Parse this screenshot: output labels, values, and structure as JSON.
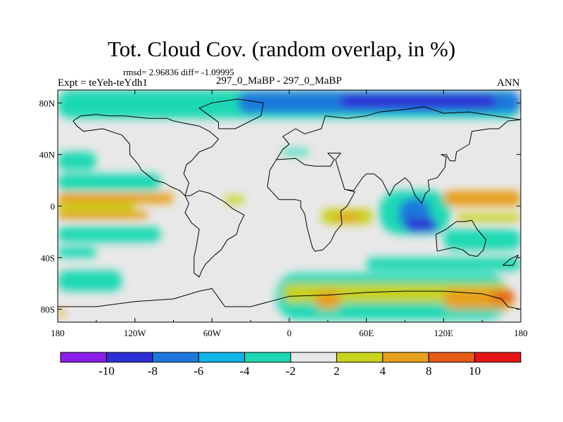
{
  "header": {
    "title": "Tot. Cloud Cov. (random overlap, in %)",
    "stats": "rmsd= 2.96836 diff= -1.09995",
    "expt": "Expt = teYeh-teYdh1",
    "case": "297_0_MaBP - 297_0_MaBP",
    "season": "ANN"
  },
  "chart_data": {
    "type": "heatmap",
    "title": "Tot. Cloud Cov. (random overlap, in %)",
    "xlim": [
      -180,
      180
    ],
    "ylim": [
      -90,
      90
    ],
    "x_ticks": [
      {
        "value": -180,
        "label": "180"
      },
      {
        "value": -120,
        "label": "120W"
      },
      {
        "value": -60,
        "label": "60W"
      },
      {
        "value": 0,
        "label": "0"
      },
      {
        "value": 60,
        "label": "60E"
      },
      {
        "value": 120,
        "label": "120E"
      },
      {
        "value": 180,
        "label": "180"
      }
    ],
    "y_ticks": [
      {
        "value": 80,
        "label": "80N"
      },
      {
        "value": 40,
        "label": "40N"
      },
      {
        "value": 0,
        "label": "0"
      },
      {
        "value": -40,
        "label": "40S"
      },
      {
        "value": -80,
        "label": "80S"
      }
    ],
    "colorbar": {
      "boundaries": [
        -10,
        -8,
        -6,
        -4,
        -2,
        2,
        4,
        8,
        10
      ],
      "labels": [
        "-10",
        "-8",
        "-6",
        "-4",
        "-2",
        "2",
        "4",
        "8",
        "10"
      ],
      "colors": [
        "#8a1ee6",
        "#2e2ed6",
        "#1e78dc",
        "#10b4e6",
        "#1ed9b4",
        "#e8e8e8",
        "#c8d21e",
        "#e6a01e",
        "#e65a14",
        "#e61414"
      ]
    },
    "regions": [
      {
        "lon": [
          -180,
          180
        ],
        "lat": [
          68,
          90
        ],
        "value": -3
      },
      {
        "lon": [
          -40,
          180
        ],
        "lat": [
          72,
          89
        ],
        "value": -7
      },
      {
        "lon": [
          40,
          160
        ],
        "lat": [
          76,
          87
        ],
        "value": -9
      },
      {
        "lon": [
          -180,
          -150
        ],
        "lat": [
          28,
          42
        ],
        "value": -3
      },
      {
        "lon": [
          -180,
          -100
        ],
        "lat": [
          12,
          25
        ],
        "value": -3
      },
      {
        "lon": [
          -180,
          -90
        ],
        "lat": [
          2,
          10
        ],
        "value": 5
      },
      {
        "lon": [
          -180,
          -120
        ],
        "lat": [
          -4,
          2
        ],
        "value": 3
      },
      {
        "lon": [
          -180,
          -110
        ],
        "lat": [
          -10,
          -4
        ],
        "value": 5
      },
      {
        "lon": [
          -180,
          -100
        ],
        "lat": [
          -28,
          -16
        ],
        "value": -3
      },
      {
        "lon": [
          -180,
          -150
        ],
        "lat": [
          -40,
          -32
        ],
        "value": -3
      },
      {
        "lon": [
          -180,
          -130
        ],
        "lat": [
          -66,
          -50
        ],
        "value": -3
      },
      {
        "lon": [
          70,
          125
        ],
        "lat": [
          -22,
          12
        ],
        "value": -3
      },
      {
        "lon": [
          85,
          110
        ],
        "lat": [
          -18,
          6
        ],
        "value": -7
      },
      {
        "lon": [
          90,
          115
        ],
        "lat": [
          -20,
          -10
        ],
        "value": -9
      },
      {
        "lon": [
          120,
          180
        ],
        "lat": [
          0,
          12
        ],
        "value": 5
      },
      {
        "lon": [
          130,
          180
        ],
        "lat": [
          -12,
          -6
        ],
        "value": 3
      },
      {
        "lon": [
          120,
          180
        ],
        "lat": [
          -34,
          -18
        ],
        "value": -3
      },
      {
        "lon": [
          25,
          65
        ],
        "lat": [
          -14,
          -2
        ],
        "value": 3
      },
      {
        "lon": [
          35,
          55
        ],
        "lat": [
          -12,
          -6
        ],
        "value": 5
      },
      {
        "lon": [
          -50,
          -35
        ],
        "lat": [
          2,
          8
        ],
        "value": 3
      },
      {
        "lon": [
          -5,
          15
        ],
        "lat": [
          40,
          44
        ],
        "value": -3
      },
      {
        "lon": [
          60,
          180
        ],
        "lat": [
          -50,
          -40
        ],
        "value": -3
      },
      {
        "lon": [
          -10,
          170
        ],
        "lat": [
          -88,
          -52
        ],
        "value": -3
      },
      {
        "lon": [
          -5,
          170
        ],
        "lat": [
          -75,
          -60
        ],
        "value": 3
      },
      {
        "lon": [
          20,
          40
        ],
        "lat": [
          -80,
          -66
        ],
        "value": 5
      },
      {
        "lon": [
          120,
          175
        ],
        "lat": [
          -80,
          -64
        ],
        "value": 5
      },
      {
        "lon": [
          158,
          175
        ],
        "lat": [
          -74,
          -66
        ],
        "value": 9
      },
      {
        "lon": [
          -180,
          -175
        ],
        "lat": [
          -86,
          -80
        ],
        "value": 5
      }
    ],
    "coastlines": [
      [
        [
          -10,
          36
        ],
        [
          -5,
          44
        ],
        [
          0,
          48
        ],
        [
          -5,
          54
        ],
        [
          5,
          60
        ],
        [
          12,
          56
        ],
        [
          25,
          60
        ],
        [
          28,
          70
        ],
        [
          45,
          68
        ],
        [
          60,
          70
        ],
        [
          70,
          73
        ],
        [
          90,
          75
        ],
        [
          105,
          77
        ],
        [
          120,
          72
        ],
        [
          140,
          73
        ],
        [
          160,
          70
        ],
        [
          180,
          67
        ]
      ],
      [
        [
          -10,
          36
        ],
        [
          5,
          37
        ],
        [
          12,
          32
        ],
        [
          20,
          31
        ],
        [
          32,
          31
        ],
        [
          35,
          36
        ],
        [
          30,
          41
        ],
        [
          40,
          41
        ],
        [
          36,
          36
        ],
        [
          43,
          13
        ],
        [
          50,
          12
        ],
        [
          57,
          22
        ],
        [
          60,
          25
        ],
        [
          66,
          25
        ],
        [
          72,
          20
        ],
        [
          78,
          8
        ],
        [
          82,
          16
        ],
        [
          90,
          22
        ],
        [
          94,
          18
        ],
        [
          98,
          8
        ],
        [
          103,
          2
        ],
        [
          106,
          10
        ],
        [
          109,
          12
        ],
        [
          108,
          20
        ],
        [
          115,
          22
        ],
        [
          121,
          30
        ],
        [
          122,
          38
        ],
        [
          118,
          40
        ],
        [
          122,
          40
        ],
        [
          125,
          35
        ],
        [
          129,
          35
        ],
        [
          130,
          42
        ],
        [
          140,
          48
        ],
        [
          142,
          58
        ],
        [
          156,
          60
        ],
        [
          163,
          60
        ],
        [
          170,
          66
        ],
        [
          180,
          67
        ]
      ],
      [
        [
          -17,
          15
        ],
        [
          -15,
          28
        ],
        [
          -10,
          36
        ]
      ],
      [
        [
          -17,
          15
        ],
        [
          -8,
          5
        ],
        [
          5,
          5
        ],
        [
          9,
          4
        ],
        [
          9,
          -1
        ],
        [
          12,
          -6
        ],
        [
          14,
          -17
        ],
        [
          18,
          -32
        ],
        [
          20,
          -35
        ],
        [
          26,
          -34
        ],
        [
          32,
          -28
        ],
        [
          36,
          -20
        ],
        [
          41,
          -14
        ],
        [
          40,
          -4
        ],
        [
          45,
          0
        ],
        [
          51,
          11
        ],
        [
          43,
          13
        ]
      ],
      [
        [
          -81,
          8
        ],
        [
          -85,
          12
        ],
        [
          -92,
          15
        ],
        [
          -97,
          18
        ],
        [
          -105,
          20
        ],
        [
          -115,
          28
        ],
        [
          -117,
          32
        ],
        [
          -124,
          40
        ],
        [
          -124,
          48
        ],
        [
          -130,
          55
        ],
        [
          -145,
          60
        ],
        [
          -160,
          58
        ],
        [
          -165,
          62
        ],
        [
          -168,
          66
        ],
        [
          -162,
          70
        ],
        [
          -150,
          71
        ],
        [
          -140,
          70
        ],
        [
          -128,
          70
        ],
        [
          -110,
          68
        ],
        [
          -95,
          68
        ],
        [
          -90,
          66
        ]
      ],
      [
        [
          -81,
          8
        ],
        [
          -78,
          18
        ],
        [
          -82,
          25
        ],
        [
          -80,
          32
        ],
        [
          -76,
          35
        ],
        [
          -70,
          42
        ],
        [
          -60,
          46
        ],
        [
          -55,
          52
        ],
        [
          -62,
          58
        ],
        [
          -70,
          62
        ],
        [
          -80,
          64
        ],
        [
          -90,
          66
        ]
      ],
      [
        [
          -81,
          8
        ],
        [
          -77,
          8
        ],
        [
          -70,
          12
        ],
        [
          -62,
          10
        ],
        [
          -50,
          3
        ],
        [
          -44,
          -2
        ],
        [
          -35,
          -7
        ],
        [
          -39,
          -15
        ],
        [
          -41,
          -22
        ],
        [
          -48,
          -26
        ],
        [
          -53,
          -34
        ],
        [
          -58,
          -38
        ],
        [
          -62,
          -42
        ],
        [
          -65,
          -45
        ],
        [
          -68,
          -50
        ],
        [
          -70,
          -55
        ],
        [
          -74,
          -52
        ],
        [
          -74,
          -40
        ],
        [
          -72,
          -30
        ],
        [
          -70,
          -18
        ],
        [
          -76,
          -13
        ],
        [
          -81,
          -5
        ],
        [
          -78,
          2
        ],
        [
          -81,
          8
        ]
      ],
      [
        [
          -55,
          60
        ],
        [
          -42,
          60
        ],
        [
          -22,
          70
        ],
        [
          -20,
          80
        ],
        [
          -40,
          83
        ],
        [
          -60,
          80
        ],
        [
          -70,
          76
        ],
        [
          -55,
          65
        ],
        [
          -55,
          60
        ]
      ],
      [
        [
          115,
          -35
        ],
        [
          114,
          -22
        ],
        [
          122,
          -18
        ],
        [
          130,
          -12
        ],
        [
          137,
          -12
        ],
        [
          142,
          -11
        ],
        [
          146,
          -18
        ],
        [
          153,
          -26
        ],
        [
          151,
          -34
        ],
        [
          146,
          -39
        ],
        [
          140,
          -38
        ],
        [
          135,
          -34
        ],
        [
          128,
          -32
        ],
        [
          115,
          -35
        ]
      ],
      [
        [
          -180,
          -78
        ],
        [
          -150,
          -78
        ],
        [
          -120,
          -74
        ],
        [
          -90,
          -72
        ],
        [
          -70,
          -66
        ],
        [
          -60,
          -64
        ],
        [
          -50,
          -78
        ],
        [
          -30,
          -78
        ],
        [
          0,
          -70
        ],
        [
          30,
          -69
        ],
        [
          60,
          -67
        ],
        [
          90,
          -66
        ],
        [
          120,
          -66
        ],
        [
          150,
          -68
        ],
        [
          165,
          -72
        ],
        [
          170,
          -78
        ],
        [
          180,
          -80
        ]
      ],
      [
        [
          166,
          -46
        ],
        [
          172,
          -41
        ],
        [
          178,
          -38
        ],
        [
          174,
          -46
        ],
        [
          166,
          -46
        ]
      ]
    ]
  }
}
